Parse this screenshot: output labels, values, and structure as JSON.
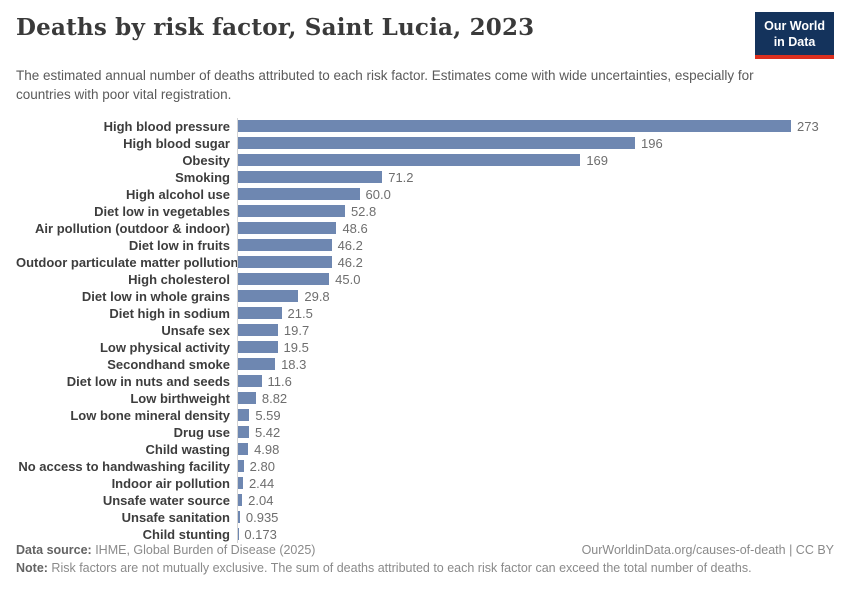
{
  "header": {
    "title": "Deaths by risk factor, Saint Lucia, 2023",
    "subtitle": "The estimated annual number of deaths attributed to each risk factor. Estimates come with wide uncertainties, especially for countries with poor vital registration.",
    "logo_line1": "Our World",
    "logo_line2": "in Data"
  },
  "chart_data": {
    "type": "bar",
    "orientation": "horizontal",
    "title": "Deaths by risk factor, Saint Lucia, 2023",
    "xlabel": "Deaths",
    "ylabel": "Risk factor",
    "xlim": [
      0,
      280
    ],
    "grid": false,
    "legend": false,
    "bar_color": "#6e87b1",
    "axis_line_color": "#d4d4d4",
    "categories": [
      "High blood pressure",
      "High blood sugar",
      "Obesity",
      "Smoking",
      "High alcohol use",
      "Diet low in vegetables",
      "Air pollution (outdoor & indoor)",
      "Diet low in fruits",
      "Outdoor particulate matter pollution",
      "High cholesterol",
      "Diet low in whole grains",
      "Diet high in sodium",
      "Unsafe sex",
      "Low physical activity",
      "Secondhand smoke",
      "Diet low in nuts and seeds",
      "Low birthweight",
      "Low bone mineral density",
      "Drug use",
      "Child wasting",
      "No access to handwashing facility",
      "Indoor air pollution",
      "Unsafe water source",
      "Unsafe sanitation",
      "Child stunting"
    ],
    "values": [
      273,
      196,
      169,
      71.2,
      60.0,
      52.8,
      48.6,
      46.2,
      46.2,
      45.0,
      29.8,
      21.5,
      19.7,
      19.5,
      18.3,
      11.6,
      8.82,
      5.59,
      5.42,
      4.98,
      2.8,
      2.44,
      2.04,
      0.935,
      0.173
    ],
    "value_labels": [
      "273",
      "196",
      "169",
      "71.2",
      "60.0",
      "52.8",
      "48.6",
      "46.2",
      "46.2",
      "45.0",
      "29.8",
      "21.5",
      "19.7",
      "19.5",
      "18.3",
      "11.6",
      "8.82",
      "5.59",
      "5.42",
      "4.98",
      "2.80",
      "2.44",
      "2.04",
      "0.935",
      "0.173"
    ]
  },
  "footer": {
    "datasource_label": "Data source:",
    "datasource_text": " IHME, Global Burden of Disease (2025)",
    "right_text": "OurWorldinData.org/causes-of-death | CC BY",
    "note_label": "Note:",
    "note_text": " Risk factors are not mutually exclusive. The sum of deaths attributed to each risk factor can exceed the total number of deaths."
  }
}
